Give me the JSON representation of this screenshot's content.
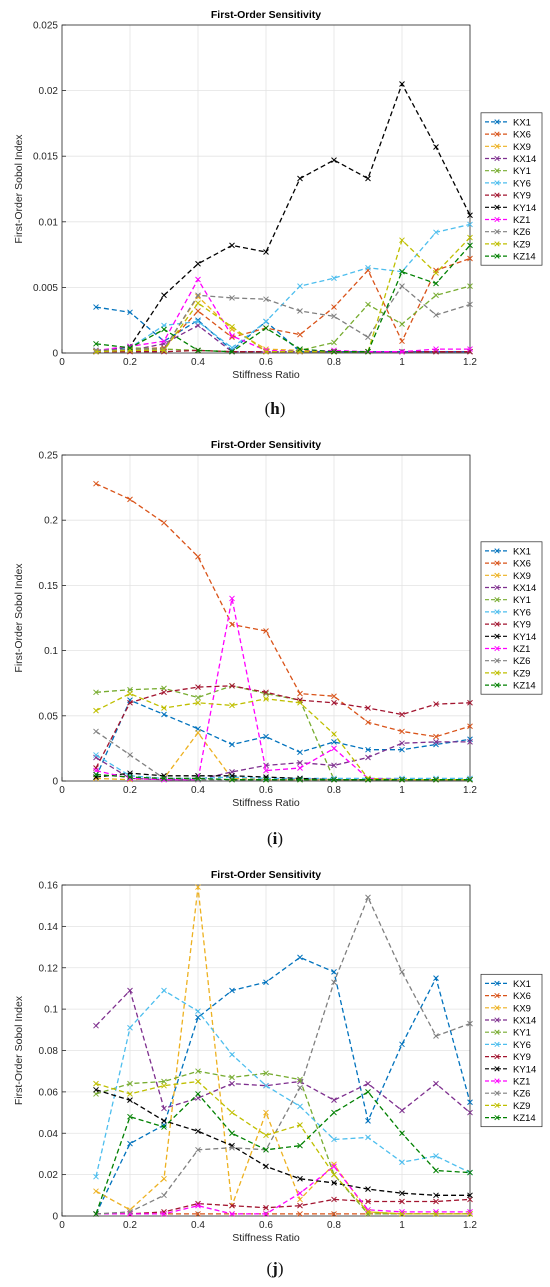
{
  "figure": {
    "panels": [
      {
        "caption_letter": "h"
      },
      {
        "caption_letter": "i"
      },
      {
        "caption_letter": "j"
      }
    ]
  },
  "series_colors": {
    "KX1": "#0072BD",
    "KX6": "#D95319",
    "KX9": "#EDB120",
    "KX14": "#7E2F8E",
    "KY1": "#77AC30",
    "KY6": "#4DBEEE",
    "KY9": "#A2142F",
    "KY14": "#000000",
    "KZ1": "#FF00FF",
    "KZ6": "#808080",
    "KZ9": "#BFBF00",
    "KZ14": "#008000"
  },
  "chart_data": [
    {
      "type": "line",
      "title": "First-Order Sensitivity",
      "xlabel": "Stiffness Ratio",
      "ylabel": "First-Order Sobol Index",
      "xlim": [
        0,
        1.2
      ],
      "ylim": [
        0,
        0.025
      ],
      "xticks": [
        "0",
        "0.2",
        "0.4",
        "0.6",
        "0.8",
        "1",
        "1.2"
      ],
      "yticks": [
        "0",
        "0.005",
        "0.01",
        "0.015",
        "0.02",
        "0.025"
      ],
      "grid": true,
      "legend_position": "right",
      "x": [
        0.1,
        0.2,
        0.3,
        0.4,
        0.5,
        0.6,
        0.7,
        0.8,
        0.9,
        1.0,
        1.1,
        1.2
      ],
      "series": [
        {
          "name": "KX1",
          "values": [
            0.0035,
            0.0031,
            0.0009,
            0.0025,
            0.0002,
            0.0024,
            0.0001,
            0.0001,
            0.0001,
            0.0001,
            0.0001,
            0.0001
          ]
        },
        {
          "name": "KX6",
          "values": [
            0.0002,
            0.0003,
            0.0004,
            0.0032,
            0.0012,
            0.0019,
            0.0014,
            0.0035,
            0.0063,
            0.0009,
            0.0063,
            0.0072
          ]
        },
        {
          "name": "KX9",
          "values": [
            0.0001,
            0.0002,
            0.0003,
            0.0043,
            0.0018,
            0.0003,
            0.0002,
            0.0001,
            0.0001,
            0.0001,
            0.0001,
            0.0001
          ]
        },
        {
          "name": "KX14",
          "values": [
            0.0001,
            0.0002,
            0.0007,
            0.0021,
            0.0001,
            0.0001,
            0.0001,
            0.0001,
            0.0001,
            0.0001,
            0.0001,
            0.0001
          ]
        },
        {
          "name": "KY1",
          "values": [
            0.0002,
            0.0004,
            0.0003,
            0.0002,
            0.0001,
            0.0001,
            0.0002,
            0.0008,
            0.0037,
            0.0022,
            0.0044,
            0.0051
          ]
        },
        {
          "name": "KY6",
          "values": [
            0.0002,
            0.0004,
            0.0021,
            0.0024,
            0.0004,
            0.0024,
            0.0051,
            0.0057,
            0.0065,
            0.0062,
            0.0092,
            0.0098
          ]
        },
        {
          "name": "KY9",
          "values": [
            0.0001,
            0.0001,
            0.0001,
            0.0002,
            0.0001,
            0.0001,
            0.0001,
            0.0001,
            0.0001,
            0.0001,
            0.0001,
            0.0001
          ]
        },
        {
          "name": "KY14",
          "values": [
            0.0001,
            0.0005,
            0.0044,
            0.0068,
            0.0082,
            0.0077,
            0.0133,
            0.0147,
            0.0133,
            0.0205,
            0.0157,
            0.0105
          ]
        },
        {
          "name": "KZ1",
          "values": [
            0.0002,
            0.0005,
            0.0009,
            0.0056,
            0.0013,
            0.0002,
            0.0001,
            0.0002,
            0.0001,
            0.0001,
            0.0003,
            0.0003
          ]
        },
        {
          "name": "KZ6",
          "values": [
            0.0002,
            0.0003,
            0.0003,
            0.0044,
            0.0042,
            0.0041,
            0.0032,
            0.0028,
            0.0012,
            0.0051,
            0.0029,
            0.0037
          ]
        },
        {
          "name": "KZ9",
          "values": [
            0.0001,
            0.0002,
            0.0002,
            0.0038,
            0.002,
            0.0001,
            0.0001,
            0.0001,
            0.0001,
            0.0086,
            0.0061,
            0.0088
          ]
        },
        {
          "name": "KZ14",
          "values": [
            0.0007,
            0.0004,
            0.0018,
            0.0002,
            0.0001,
            0.0019,
            0.0003,
            0.0001,
            0.0001,
            0.0062,
            0.0053,
            0.0082
          ]
        }
      ]
    },
    {
      "type": "line",
      "title": "First-Order Sensitivity",
      "xlabel": "Stiffness Ratio",
      "ylabel": "First-Order Sobol Index",
      "xlim": [
        0,
        1.2
      ],
      "ylim": [
        0,
        0.25
      ],
      "xticks": [
        "0",
        "0.2",
        "0.4",
        "0.6",
        "0.8",
        "1",
        "1.2"
      ],
      "yticks": [
        "0",
        "0.05",
        "0.1",
        "0.15",
        "0.2",
        "0.25"
      ],
      "grid": true,
      "legend_position": "right",
      "x": [
        0.1,
        0.2,
        0.3,
        0.4,
        0.5,
        0.6,
        0.7,
        0.8,
        0.9,
        1.0,
        1.1,
        1.2
      ],
      "series": [
        {
          "name": "KX1",
          "values": [
            0.003,
            0.062,
            0.051,
            0.04,
            0.028,
            0.034,
            0.022,
            0.03,
            0.024,
            0.024,
            0.028,
            0.032
          ]
        },
        {
          "name": "KX6",
          "values": [
            0.228,
            0.216,
            0.198,
            0.172,
            0.12,
            0.115,
            0.067,
            0.065,
            0.045,
            0.038,
            0.034,
            0.042
          ]
        },
        {
          "name": "KX9",
          "values": [
            0.002,
            0.001,
            0.002,
            0.037,
            0.002,
            0.001,
            0.001,
            0.001,
            0.001,
            0.001,
            0.001,
            0.001
          ]
        },
        {
          "name": "KX14",
          "values": [
            0.018,
            0.002,
            0.001,
            0.001,
            0.007,
            0.012,
            0.014,
            0.012,
            0.018,
            0.029,
            0.03,
            0.03
          ]
        },
        {
          "name": "KY1",
          "values": [
            0.068,
            0.07,
            0.071,
            0.064,
            0.073,
            0.067,
            0.062,
            0.001,
            0.001,
            0.001,
            0.001,
            0.001
          ]
        },
        {
          "name": "KY6",
          "values": [
            0.02,
            0.004,
            0.002,
            0.002,
            0.003,
            0.002,
            0.002,
            0.002,
            0.002,
            0.002,
            0.002,
            0.002
          ]
        },
        {
          "name": "KY9",
          "values": [
            0.01,
            0.06,
            0.068,
            0.072,
            0.073,
            0.068,
            0.062,
            0.06,
            0.056,
            0.051,
            0.059,
            0.06
          ]
        },
        {
          "name": "KY14",
          "values": [
            0.003,
            0.006,
            0.004,
            0.004,
            0.004,
            0.003,
            0.002,
            0.001,
            0.001,
            0.001,
            0.001,
            0.001
          ]
        },
        {
          "name": "KZ1",
          "values": [
            0.008,
            0.002,
            0.001,
            0.001,
            0.14,
            0.008,
            0.01,
            0.025,
            0.002,
            0.001,
            0.001,
            0.001
          ]
        },
        {
          "name": "KZ6",
          "values": [
            0.038,
            0.02,
            0.002,
            0.001,
            0.001,
            0.001,
            0.001,
            0.001,
            0.001,
            0.001,
            0.001,
            0.001
          ]
        },
        {
          "name": "KZ9",
          "values": [
            0.054,
            0.067,
            0.056,
            0.06,
            0.058,
            0.063,
            0.06,
            0.036,
            0.002,
            0.001,
            0.001,
            0.001
          ]
        },
        {
          "name": "KZ14",
          "values": [
            0.005,
            0.003,
            0.002,
            0.002,
            0.001,
            0.001,
            0.001,
            0.001,
            0.001,
            0.001,
            0.001,
            0.001
          ]
        }
      ]
    },
    {
      "type": "line",
      "title": "First-Order Sensitivity",
      "xlabel": "Stiffness Ratio",
      "ylabel": "First-Order Sobol Index",
      "xlim": [
        0,
        1.2
      ],
      "ylim": [
        0,
        0.16
      ],
      "xticks": [
        "0",
        "0.2",
        "0.4",
        "0.6",
        "0.8",
        "1",
        "1.2"
      ],
      "yticks": [
        "0",
        "0.02",
        "0.04",
        "0.06",
        "0.08",
        "0.1",
        "0.12",
        "0.14",
        "0.16"
      ],
      "grid": true,
      "legend_position": "right",
      "x": [
        0.1,
        0.2,
        0.3,
        0.4,
        0.5,
        0.6,
        0.7,
        0.8,
        0.9,
        1.0,
        1.1,
        1.2
      ],
      "series": [
        {
          "name": "KX1",
          "values": [
            0.001,
            0.035,
            0.044,
            0.096,
            0.109,
            0.113,
            0.125,
            0.118,
            0.046,
            0.083,
            0.115,
            0.055
          ]
        },
        {
          "name": "KX6",
          "values": [
            0.001,
            0.001,
            0.001,
            0.001,
            0.001,
            0.001,
            0.001,
            0.001,
            0.001,
            0.001,
            0.001,
            0.001
          ]
        },
        {
          "name": "KX9",
          "values": [
            0.012,
            0.003,
            0.018,
            0.159,
            0.005,
            0.05,
            0.008,
            0.025,
            0.002,
            0.001,
            0.001,
            0.001
          ]
        },
        {
          "name": "KX14",
          "values": [
            0.092,
            0.109,
            0.052,
            0.057,
            0.064,
            0.063,
            0.065,
            0.056,
            0.064,
            0.051,
            0.064,
            0.05
          ]
        },
        {
          "name": "KY1",
          "values": [
            0.059,
            0.064,
            0.065,
            0.07,
            0.067,
            0.069,
            0.066,
            0.02,
            0.001,
            0.001,
            0.001,
            0.001
          ]
        },
        {
          "name": "KY6",
          "values": [
            0.019,
            0.091,
            0.109,
            0.099,
            0.078,
            0.063,
            0.053,
            0.037,
            0.038,
            0.026,
            0.029,
            0.021
          ]
        },
        {
          "name": "KY9",
          "values": [
            0.001,
            0.001,
            0.002,
            0.006,
            0.005,
            0.004,
            0.005,
            0.008,
            0.007,
            0.007,
            0.007,
            0.008
          ]
        },
        {
          "name": "KY14",
          "values": [
            0.061,
            0.056,
            0.046,
            0.041,
            0.034,
            0.024,
            0.018,
            0.016,
            0.013,
            0.011,
            0.01,
            0.01
          ]
        },
        {
          "name": "KZ1",
          "values": [
            0.001,
            0.001,
            0.001,
            0.005,
            0.001,
            0.001,
            0.011,
            0.024,
            0.003,
            0.002,
            0.002,
            0.002
          ]
        },
        {
          "name": "KZ6",
          "values": [
            0.001,
            0.002,
            0.01,
            0.032,
            0.033,
            0.032,
            0.062,
            0.113,
            0.154,
            0.118,
            0.087,
            0.093
          ]
        },
        {
          "name": "KZ9",
          "values": [
            0.064,
            0.059,
            0.063,
            0.065,
            0.05,
            0.039,
            0.044,
            0.02,
            0.002,
            0.001,
            0.001,
            0.001
          ]
        },
        {
          "name": "KZ14",
          "values": [
            0.001,
            0.048,
            0.043,
            0.059,
            0.04,
            0.032,
            0.034,
            0.05,
            0.06,
            0.04,
            0.022,
            0.021
          ]
        }
      ]
    }
  ]
}
